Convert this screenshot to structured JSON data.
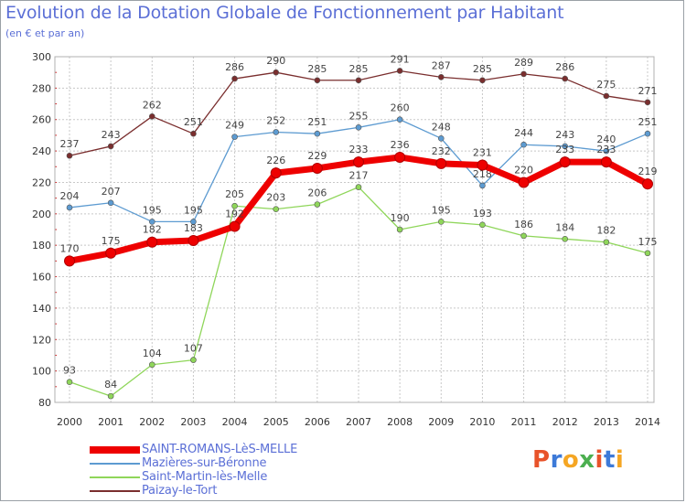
{
  "header": {
    "title": "Evolution de la Dotation Globale de Fonctionnement par Habitant",
    "subtitle": "(en € et par an)"
  },
  "logo": {
    "text": "Proxiti",
    "colors": [
      "#e8532a",
      "#3d7ad8",
      "#f5a623",
      "#4caf50",
      "#e8532a",
      "#3d7ad8",
      "#f5a623"
    ]
  },
  "chart_data": {
    "type": "line",
    "title": "Evolution de la Dotation Globale de Fonctionnement par Habitant",
    "ylabel": "(en € et par an)",
    "xlabel": "",
    "ylim": [
      80,
      300
    ],
    "yticks": [
      80,
      100,
      120,
      140,
      160,
      180,
      200,
      220,
      240,
      260,
      280,
      300
    ],
    "grid": true,
    "x": [
      "2000",
      "2001",
      "2002",
      "2003",
      "2004",
      "2005",
      "2006",
      "2007",
      "2008",
      "2009",
      "2010",
      "2011",
      "2012",
      "2013",
      "2014"
    ],
    "series": [
      {
        "name": "Paizay-le-Tort",
        "color": "#7a2e2e",
        "values": [
          237,
          243,
          262,
          251,
          286,
          290,
          285,
          285,
          291,
          287,
          285,
          289,
          286,
          275,
          271
        ]
      },
      {
        "name": "Mazières-sur-Béronne",
        "color": "#5d9bd1",
        "values": [
          204,
          207,
          195,
          195,
          249,
          252,
          251,
          255,
          260,
          248,
          218,
          244,
          243,
          240,
          251
        ]
      },
      {
        "name": "Saint-Martin-lès-Melle",
        "color": "#8fd65a",
        "values": [
          93,
          84,
          104,
          107,
          205,
          203,
          206,
          217,
          190,
          195,
          193,
          186,
          184,
          182,
          175
        ]
      },
      {
        "name": "SAINT-ROMANS-LèS-MELLE",
        "color": "#ee0000",
        "values": [
          170,
          175,
          182,
          183,
          192,
          226,
          229,
          233,
          236,
          232,
          231,
          220,
          233,
          233,
          219
        ]
      }
    ],
    "legend": [
      "SAINT-ROMANS-LèS-MELLE",
      "Mazières-sur-Béronne",
      "Saint-Martin-lès-Melle",
      "Paizay-le-Tort"
    ],
    "legend_position": "bottom-left"
  }
}
